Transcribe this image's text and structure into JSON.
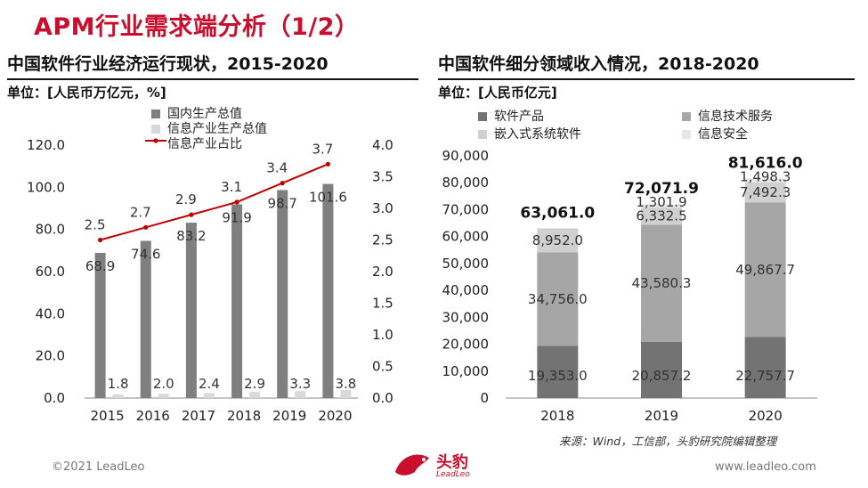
{
  "header": {
    "title": "APM行业需求端分析（1/2）"
  },
  "left_panel": {
    "subtitle": "中国软件行业经济运行现状，2015-2020",
    "unit": "单位：[人民币万亿元，%]",
    "legend": [
      "国内生产总值",
      "信息产业生产总值",
      "信息产业占比"
    ]
  },
  "right_panel": {
    "subtitle": "中国软件细分领域收入情况，2018-2020",
    "unit": "单位：[人民币亿元]",
    "legend": [
      "软件产品",
      "信息技术服务",
      "嵌入式系统软件",
      "信息安全"
    ]
  },
  "chart_data": [
    {
      "type": "bar",
      "categories": [
        "2015",
        "2016",
        "2017",
        "2018",
        "2019",
        "2020"
      ],
      "series": [
        {
          "name": "国内生产总值",
          "values": [
            68.9,
            74.6,
            83.2,
            91.9,
            98.7,
            101.6
          ],
          "labels": [
            "68.9",
            "74.6",
            "83.2",
            "91.9",
            "98.7",
            "101.6"
          ],
          "color": "#7f7f7f"
        },
        {
          "name": "信息产业生产总值",
          "values": [
            1.8,
            2.0,
            2.4,
            2.9,
            3.3,
            3.8
          ],
          "labels": [
            "1.8",
            "2.0",
            "2.4",
            "2.9",
            "3.3",
            "3.8"
          ],
          "color": "#d9d9d9"
        },
        {
          "name": "信息产业占比",
          "type": "line",
          "axis": "right",
          "values": [
            2.5,
            2.7,
            2.9,
            3.1,
            3.4,
            3.7
          ],
          "labels": [
            "2.5",
            "2.7",
            "2.9",
            "3.1",
            "3.4",
            "3.7"
          ],
          "color": "#c00000"
        }
      ],
      "ylim": [
        0,
        120
      ],
      "y_ticks": [
        "0.0",
        "20.0",
        "40.0",
        "60.0",
        "80.0",
        "100.0",
        "120.0"
      ],
      "y2lim": [
        0,
        4
      ],
      "y2_ticks": [
        "0.0",
        "0.5",
        "1.0",
        "1.5",
        "2.0",
        "2.5",
        "3.0",
        "3.5",
        "4.0"
      ],
      "grid": false,
      "legend_position": "top"
    },
    {
      "type": "bar",
      "stacked": true,
      "categories": [
        "2018",
        "2019",
        "2020"
      ],
      "series": [
        {
          "name": "软件产品",
          "values": [
            19353.0,
            20857.2,
            22757.7
          ],
          "labels": [
            "19,353.0",
            "20,857.2",
            "22,757.7"
          ],
          "color": "#737373"
        },
        {
          "name": "信息技术服务",
          "values": [
            34756.0,
            43580.3,
            49867.7
          ],
          "labels": [
            "34,756.0",
            "43,580.3",
            "49,867.7"
          ],
          "color": "#a6a6a6"
        },
        {
          "name": "嵌入式系统软件",
          "values": [
            8952.0,
            6332.5,
            7492.3
          ],
          "labels": [
            "8,952.0",
            "6,332.5",
            "7,492.3"
          ],
          "color": "#d0d0d0"
        },
        {
          "name": "信息安全",
          "values": [
            0,
            1301.9,
            1498.3
          ],
          "labels": [
            "",
            "1,301.9",
            "1,498.3"
          ],
          "color": "#e6e6e6"
        }
      ],
      "totals": [
        "63,061.0",
        "72,071.9",
        "81,616.0"
      ],
      "ylim": [
        0,
        90000
      ],
      "y_ticks": [
        "0",
        "10,000",
        "20,000",
        "30,000",
        "40,000",
        "50,000",
        "60,000",
        "70,000",
        "80,000",
        "90,000"
      ],
      "grid": false,
      "legend_position": "top"
    }
  ],
  "source": "来源：Wind，工信部，头豹研究院编辑整理",
  "footer": {
    "copyright": "©2021 LeadLeo",
    "website": "www.leadleo.com",
    "logo_text": "头豹",
    "logo_sub": "LeadLeo"
  }
}
